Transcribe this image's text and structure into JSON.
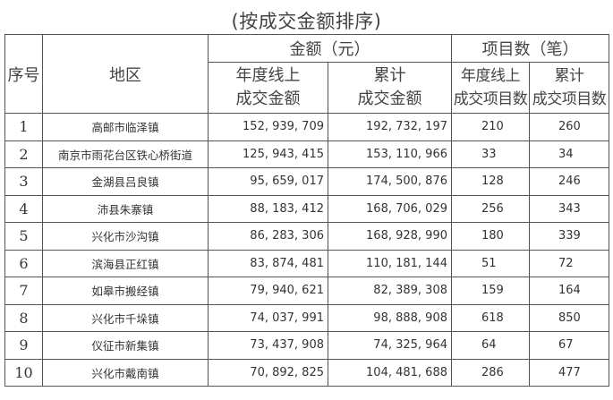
{
  "title": "(按成交金额排序)",
  "headers": {
    "index": "序号",
    "region": "地区",
    "amount_group": "金额（元）",
    "count_group": "项目数（笔）",
    "online_amount": [
      "年度线上",
      "成交金额"
    ],
    "total_amount": [
      "累计",
      "成交金额"
    ],
    "online_count": [
      "年度线上",
      "成交项目数"
    ],
    "total_count": [
      "累计",
      "成交项目数"
    ]
  },
  "rows": [
    {
      "index": "1",
      "region": "高邮市临泽镇",
      "online_amount": "152, 939, 709",
      "total_amount": "192, 732, 197",
      "online_count": "210",
      "total_count": "260"
    },
    {
      "index": "2",
      "region": "南京市雨花台区铁心桥街道",
      "online_amount": "125, 943, 415",
      "total_amount": "153, 110, 966",
      "online_count": "33",
      "total_count": "34"
    },
    {
      "index": "3",
      "region": "金湖县吕良镇",
      "online_amount": "95, 659, 017",
      "total_amount": "174, 500, 876",
      "online_count": "128",
      "total_count": "246"
    },
    {
      "index": "4",
      "region": "沛县朱寨镇",
      "online_amount": "88, 183, 412",
      "total_amount": "168, 706, 029",
      "online_count": "256",
      "total_count": "343"
    },
    {
      "index": "5",
      "region": "兴化市沙沟镇",
      "online_amount": "86, 283, 306",
      "total_amount": "168, 928, 990",
      "online_count": "180",
      "total_count": "339"
    },
    {
      "index": "6",
      "region": "滨海县正红镇",
      "online_amount": "83, 874, 481",
      "total_amount": "110, 181, 144",
      "online_count": "51",
      "total_count": "72"
    },
    {
      "index": "7",
      "region": "如皋市搬经镇",
      "online_amount": "79, 940, 621",
      "total_amount": "82, 389, 308",
      "online_count": "159",
      "total_count": "164"
    },
    {
      "index": "8",
      "region": "兴化市千垛镇",
      "online_amount": "74, 037, 991",
      "total_amount": "98, 888, 908",
      "online_count": "618",
      "total_count": "850"
    },
    {
      "index": "9",
      "region": "仪征市新集镇",
      "online_amount": "73, 437, 908",
      "total_amount": "74, 325, 964",
      "online_count": "64",
      "total_count": "67"
    },
    {
      "index": "10",
      "region": "兴化市戴南镇",
      "online_amount": "70, 892, 825",
      "total_amount": "104, 481, 688",
      "online_count": "286",
      "total_count": "477"
    }
  ]
}
